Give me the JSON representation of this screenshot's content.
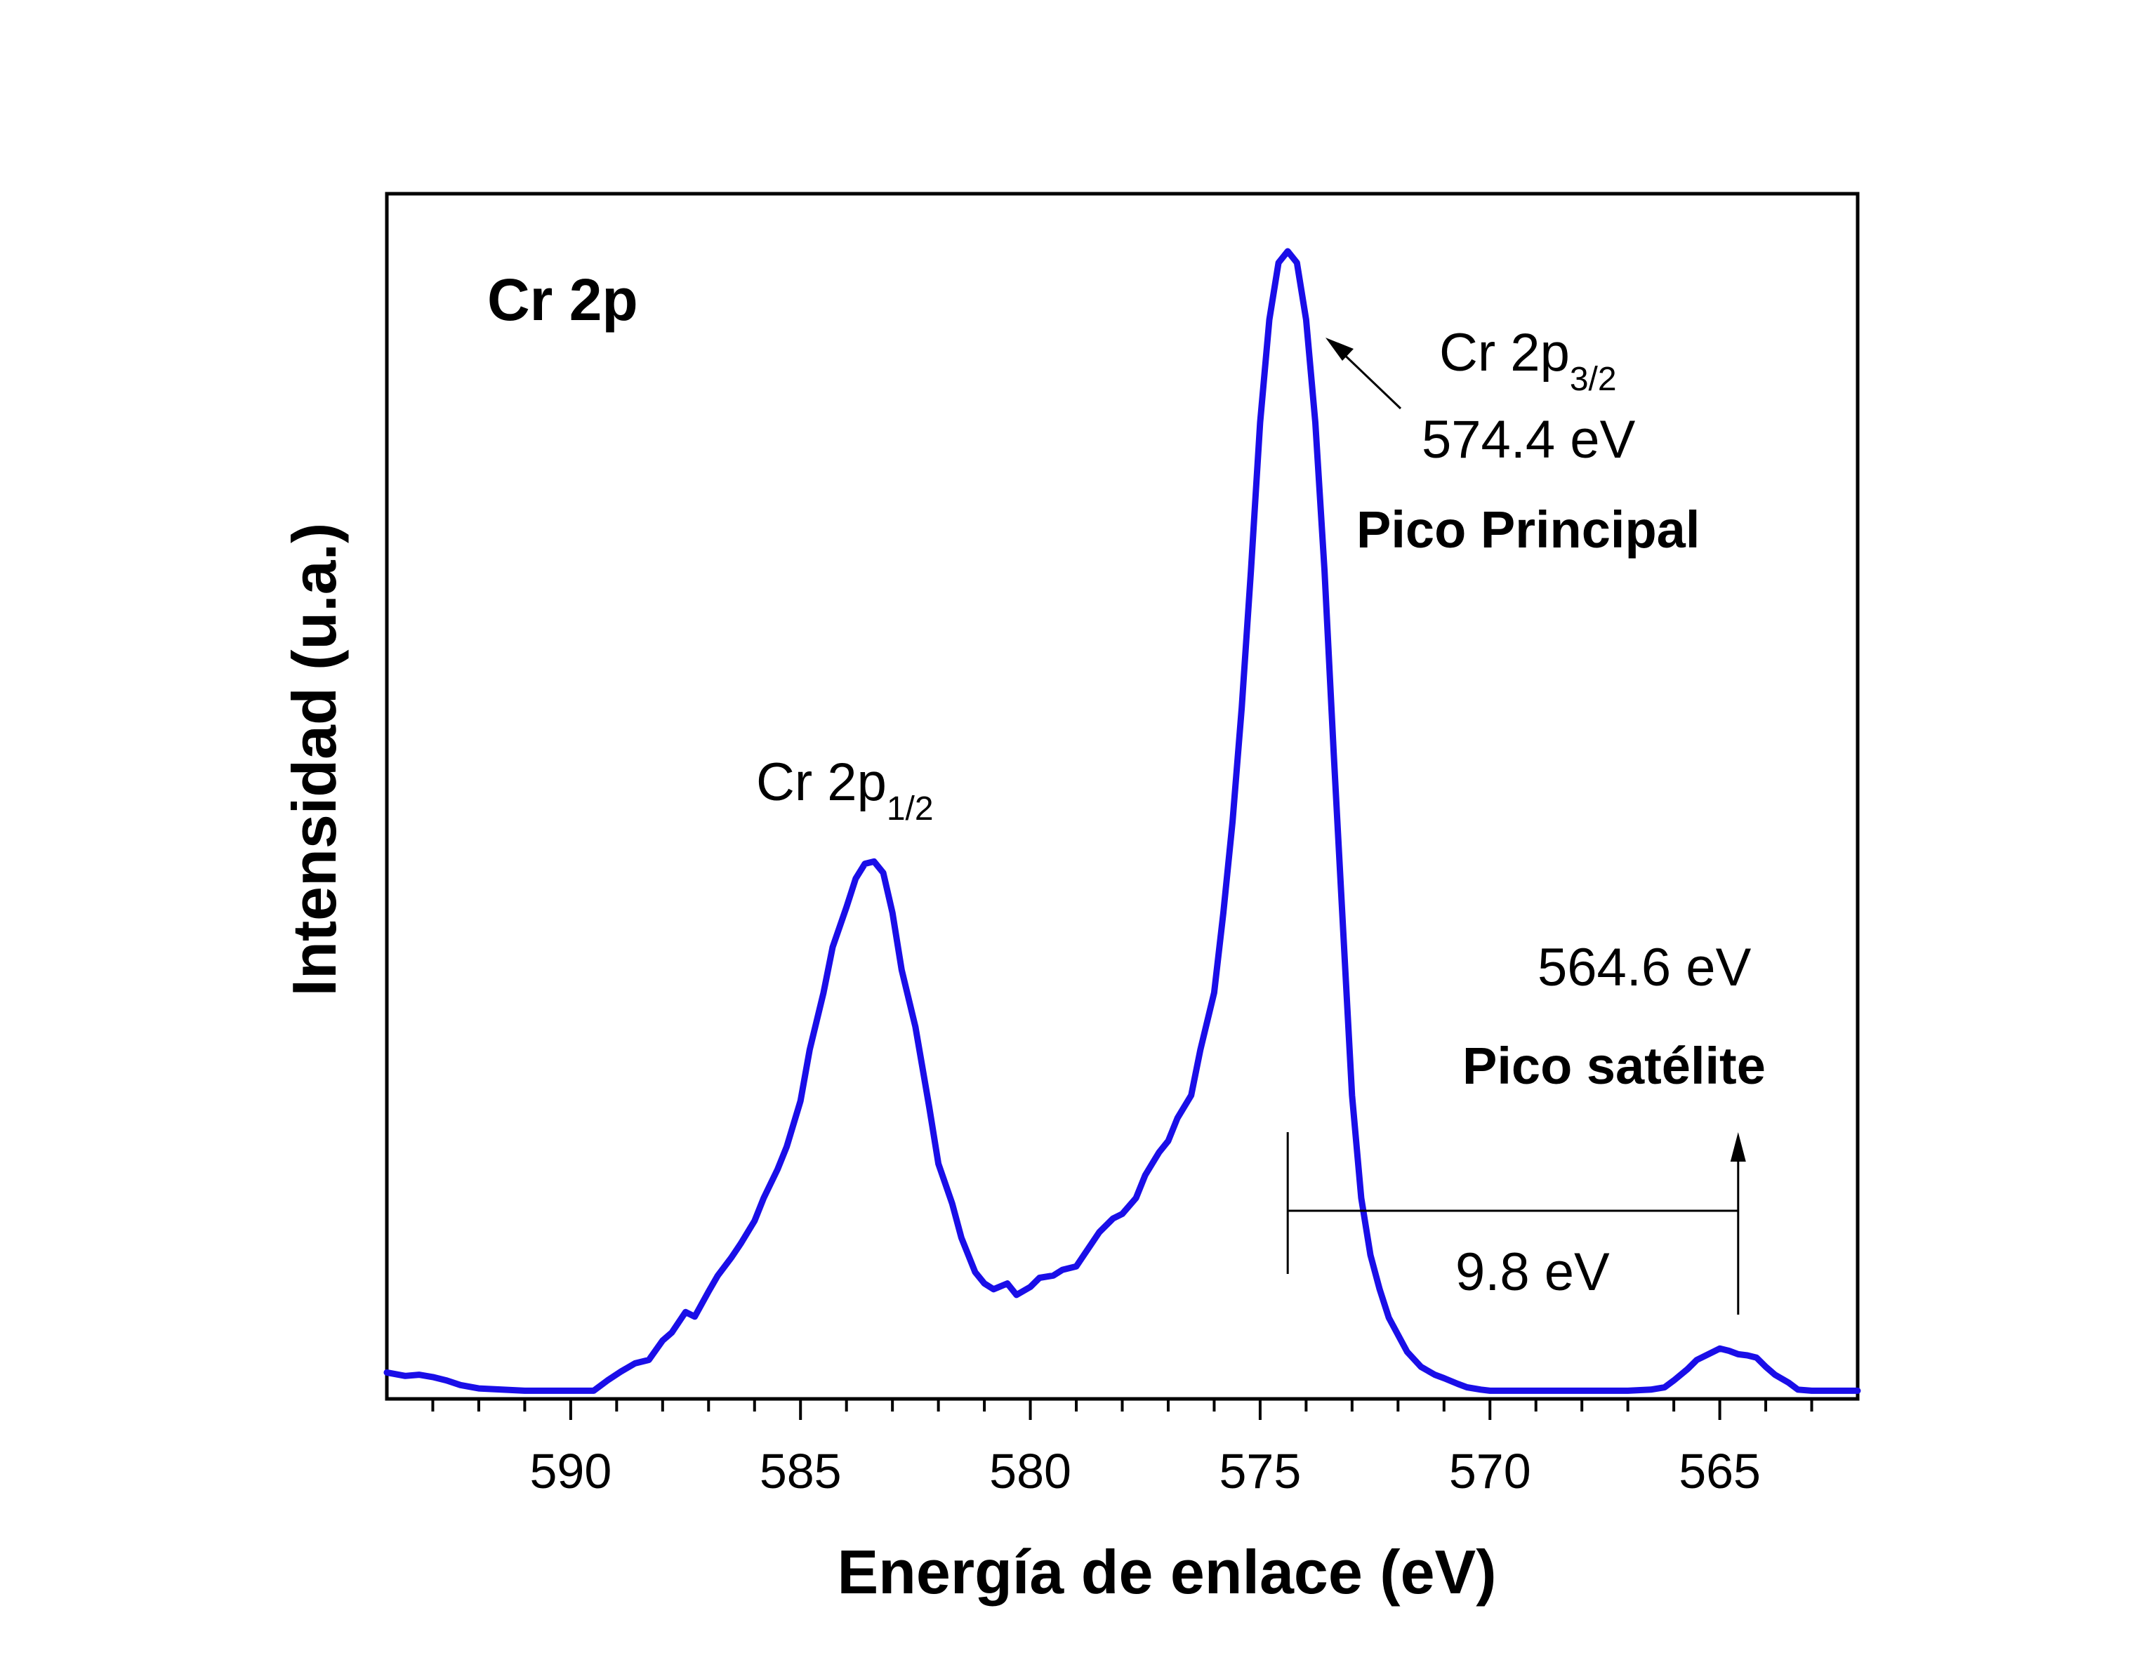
{
  "chart_data": {
    "type": "line",
    "panel_label": "Cr 2p",
    "xlabel": "Energía de enlace (eV)",
    "ylabel": "Intensidad (u.a.)",
    "xlim": [
      594,
      562
    ],
    "x_reversed": true,
    "ylim": [
      0,
      1.0
    ],
    "y_ticks_labeled": false,
    "x_ticks": [
      590,
      585,
      580,
      575,
      570,
      565
    ],
    "x_tick_labels": [
      "590",
      "585",
      "580",
      "575",
      "570",
      "565"
    ],
    "grid": false,
    "legend": "none",
    "series": [
      {
        "color": "#1a0ee8",
        "x": [
          594,
          593.6,
          593.3,
          593.0,
          592.7,
          592.4,
          592.0,
          591.5,
          591.0,
          590.5,
          590.0,
          589.5,
          589.2,
          588.9,
          588.6,
          588.3,
          588.0,
          587.8,
          587.5,
          587.3,
          587.0,
          586.8,
          586.5,
          586.3,
          586.0,
          585.8,
          585.5,
          585.3,
          585.0,
          584.8,
          584.5,
          584.3,
          584.0,
          583.8,
          583.6,
          583.4,
          583.2,
          583.0,
          582.8,
          582.5,
          582.2,
          582.0,
          581.7,
          581.5,
          581.2,
          581.0,
          580.8,
          580.5,
          580.3,
          580.0,
          579.8,
          579.5,
          579.3,
          579.0,
          578.8,
          578.5,
          578.2,
          578.0,
          577.7,
          577.5,
          577.2,
          577.0,
          576.8,
          576.5,
          576.3,
          576.0,
          575.8,
          575.6,
          575.4,
          575.2,
          575.0,
          574.8,
          574.6,
          574.4,
          574.2,
          574.0,
          573.8,
          573.6,
          573.4,
          573.2,
          573.0,
          572.8,
          572.6,
          572.4,
          572.2,
          572.0,
          571.8,
          571.5,
          571.2,
          571.0,
          570.7,
          570.5,
          570.2,
          570.0,
          569.5,
          569.0,
          568.5,
          568.0,
          567.5,
          567.0,
          566.5,
          566.2,
          566.0,
          565.7,
          565.5,
          565.2,
          565.0,
          564.8,
          564.6,
          564.4,
          564.2,
          564.0,
          563.8,
          563.5,
          563.3,
          563.0,
          562.5,
          562.0
        ],
        "y": [
          0.017,
          0.014,
          0.015,
          0.013,
          0.01,
          0.006,
          0.003,
          0.002,
          0.001,
          0.001,
          0.001,
          0.001,
          0.01,
          0.018,
          0.025,
          0.028,
          0.045,
          0.052,
          0.07,
          0.066,
          0.088,
          0.102,
          0.118,
          0.13,
          0.15,
          0.17,
          0.195,
          0.215,
          0.255,
          0.3,
          0.35,
          0.39,
          0.425,
          0.45,
          0.463,
          0.465,
          0.455,
          0.42,
          0.37,
          0.32,
          0.25,
          0.2,
          0.165,
          0.135,
          0.105,
          0.095,
          0.09,
          0.095,
          0.085,
          0.092,
          0.1,
          0.102,
          0.107,
          0.11,
          0.122,
          0.14,
          0.152,
          0.156,
          0.17,
          0.19,
          0.21,
          0.22,
          0.24,
          0.26,
          0.3,
          0.35,
          0.42,
          0.5,
          0.6,
          0.72,
          0.85,
          0.94,
          0.99,
          1.0,
          0.99,
          0.94,
          0.85,
          0.72,
          0.56,
          0.41,
          0.26,
          0.17,
          0.12,
          0.09,
          0.065,
          0.05,
          0.035,
          0.022,
          0.015,
          0.012,
          0.007,
          0.004,
          0.002,
          0.001,
          0.001,
          0.001,
          0.001,
          0.001,
          0.001,
          0.001,
          0.002,
          0.004,
          0.01,
          0.02,
          0.028,
          0.034,
          0.038,
          0.036,
          0.033,
          0.032,
          0.03,
          0.022,
          0.015,
          0.008,
          0.002,
          0.001,
          0.001,
          0.001
        ]
      }
    ],
    "annotations": {
      "peak_main": {
        "name": "Cr 2p",
        "sub": "3/2",
        "energy": "574.4 eV",
        "label": "Pico Principal"
      },
      "peak_half": {
        "name": "Cr 2p",
        "sub": "1/2"
      },
      "satellite": {
        "energy": "564.6 eV",
        "label": "Pico satélite",
        "x": 564.6
      },
      "separation": {
        "label": "9.8 eV",
        "x_from": 574.4,
        "x_to": 564.6
      }
    }
  }
}
